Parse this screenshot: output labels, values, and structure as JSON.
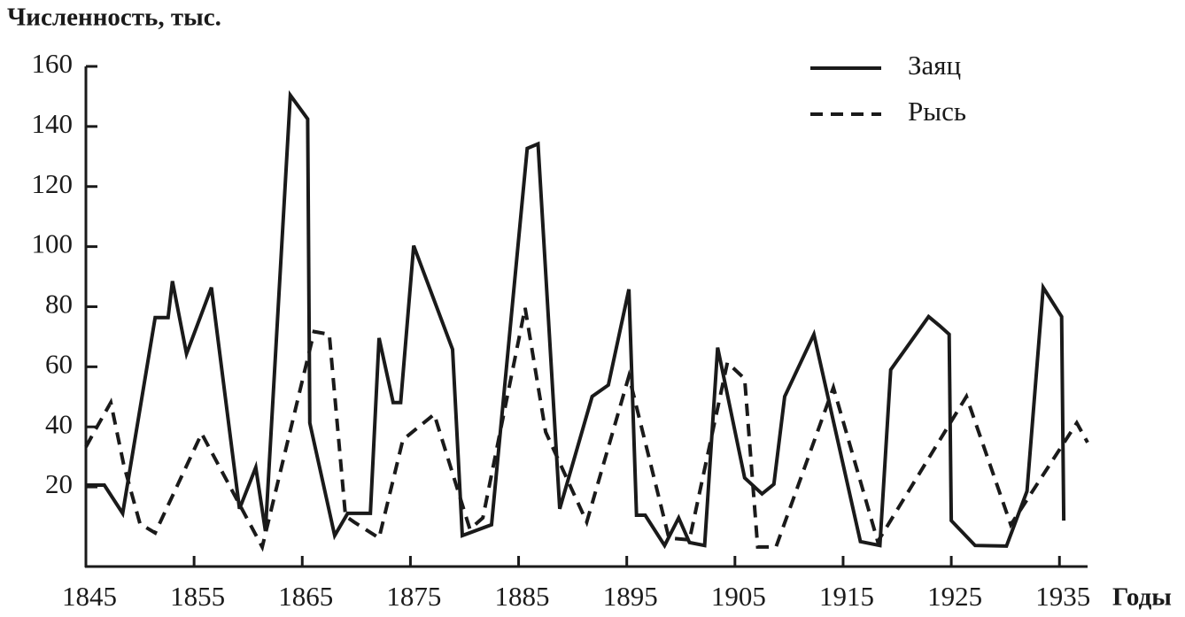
{
  "chart_data": {
    "type": "line",
    "title": "Численность, тыс.",
    "x_label": "Годы",
    "xlim": [
      1845,
      1937.6
    ],
    "xticks": [
      1845,
      1855,
      1865,
      1875,
      1885,
      1895,
      1905,
      1915,
      1925,
      1935
    ],
    "ylim": [
      -6.5,
      160
    ],
    "yticks": [
      20,
      40,
      60,
      80,
      100,
      120,
      140,
      160
    ],
    "legend": "top-right",
    "series": [
      {
        "name": "Заяц",
        "color": "#1a1a1a",
        "dash": false,
        "x": [
          1845.0,
          1846.7,
          1848.4,
          1851.4,
          1852.6,
          1853.0,
          1854.3,
          1856.6,
          1859.2,
          1860.7,
          1861.6,
          1863.9,
          1865.5,
          1865.7,
          1868.0,
          1869.2,
          1871.3,
          1872.1,
          1873.4,
          1874.1,
          1875.3,
          1878.9,
          1879.8,
          1882.5,
          1885.8,
          1886.8,
          1888.8,
          1891.8,
          1893.3,
          1895.2,
          1895.9,
          1896.7,
          1898.5,
          1899.8,
          1900.8,
          1902.2,
          1903.4,
          1905.9,
          1907.5,
          1908.6,
          1909.6,
          1912.3,
          1916.6,
          1918.4,
          1919.4,
          1922.9,
          1923.9,
          1924.8,
          1925.0,
          1927.2,
          1930.1,
          1932.0,
          1933.5,
          1935.2,
          1935.4
        ],
        "values": [
          20.6,
          20.6,
          11.2,
          76.4,
          76.4,
          88.5,
          64.3,
          86.4,
          12.7,
          26.5,
          5.3,
          150.4,
          142.5,
          41.3,
          3.8,
          11.2,
          11.2,
          69.6,
          48.1,
          48.1,
          100.3,
          65.8,
          3.8,
          7.4,
          132.7,
          134.2,
          12.7,
          50.1,
          53.9,
          85.8,
          10.6,
          10.6,
          0.5,
          9.7,
          1.5,
          0.5,
          66.4,
          23.0,
          17.7,
          20.9,
          50.1,
          70.8,
          1.8,
          0.5,
          59.0,
          76.7,
          73.7,
          70.8,
          8.8,
          0.5,
          0.3,
          18.6,
          86.4,
          76.7,
          8.8
        ]
      },
      {
        "name": "Рысь",
        "color": "#1a1a1a",
        "dash": true,
        "x": [
          1845.0,
          1845.9,
          1847.3,
          1848.5,
          1850.0,
          1851.4,
          1855.7,
          1859.2,
          1861.3,
          1866.1,
          1867.5,
          1869.0,
          1869.8,
          1872.1,
          1874.3,
          1877.2,
          1880.5,
          1881.7,
          1885.6,
          1887.5,
          1891.3,
          1895.2,
          1898.9,
          1900.8,
          1904.3,
          1905.9,
          1907.1,
          1908.8,
          1914.1,
          1918.2,
          1926.4,
          1930.5,
          1936.6,
          1937.6
        ],
        "values": [
          33.3,
          39.2,
          48.1,
          27.4,
          7.7,
          4.7,
          37.8,
          14.2,
          0,
          71.7,
          70.8,
          10.3,
          8.3,
          3.0,
          35.7,
          44.2,
          5.9,
          9.7,
          79.6,
          38.3,
          8.3,
          56.9,
          3.0,
          2.4,
          61.4,
          56.0,
          0,
          0,
          53.1,
          1.8,
          50.1,
          7.4,
          41.3,
          34.8
        ]
      }
    ]
  }
}
